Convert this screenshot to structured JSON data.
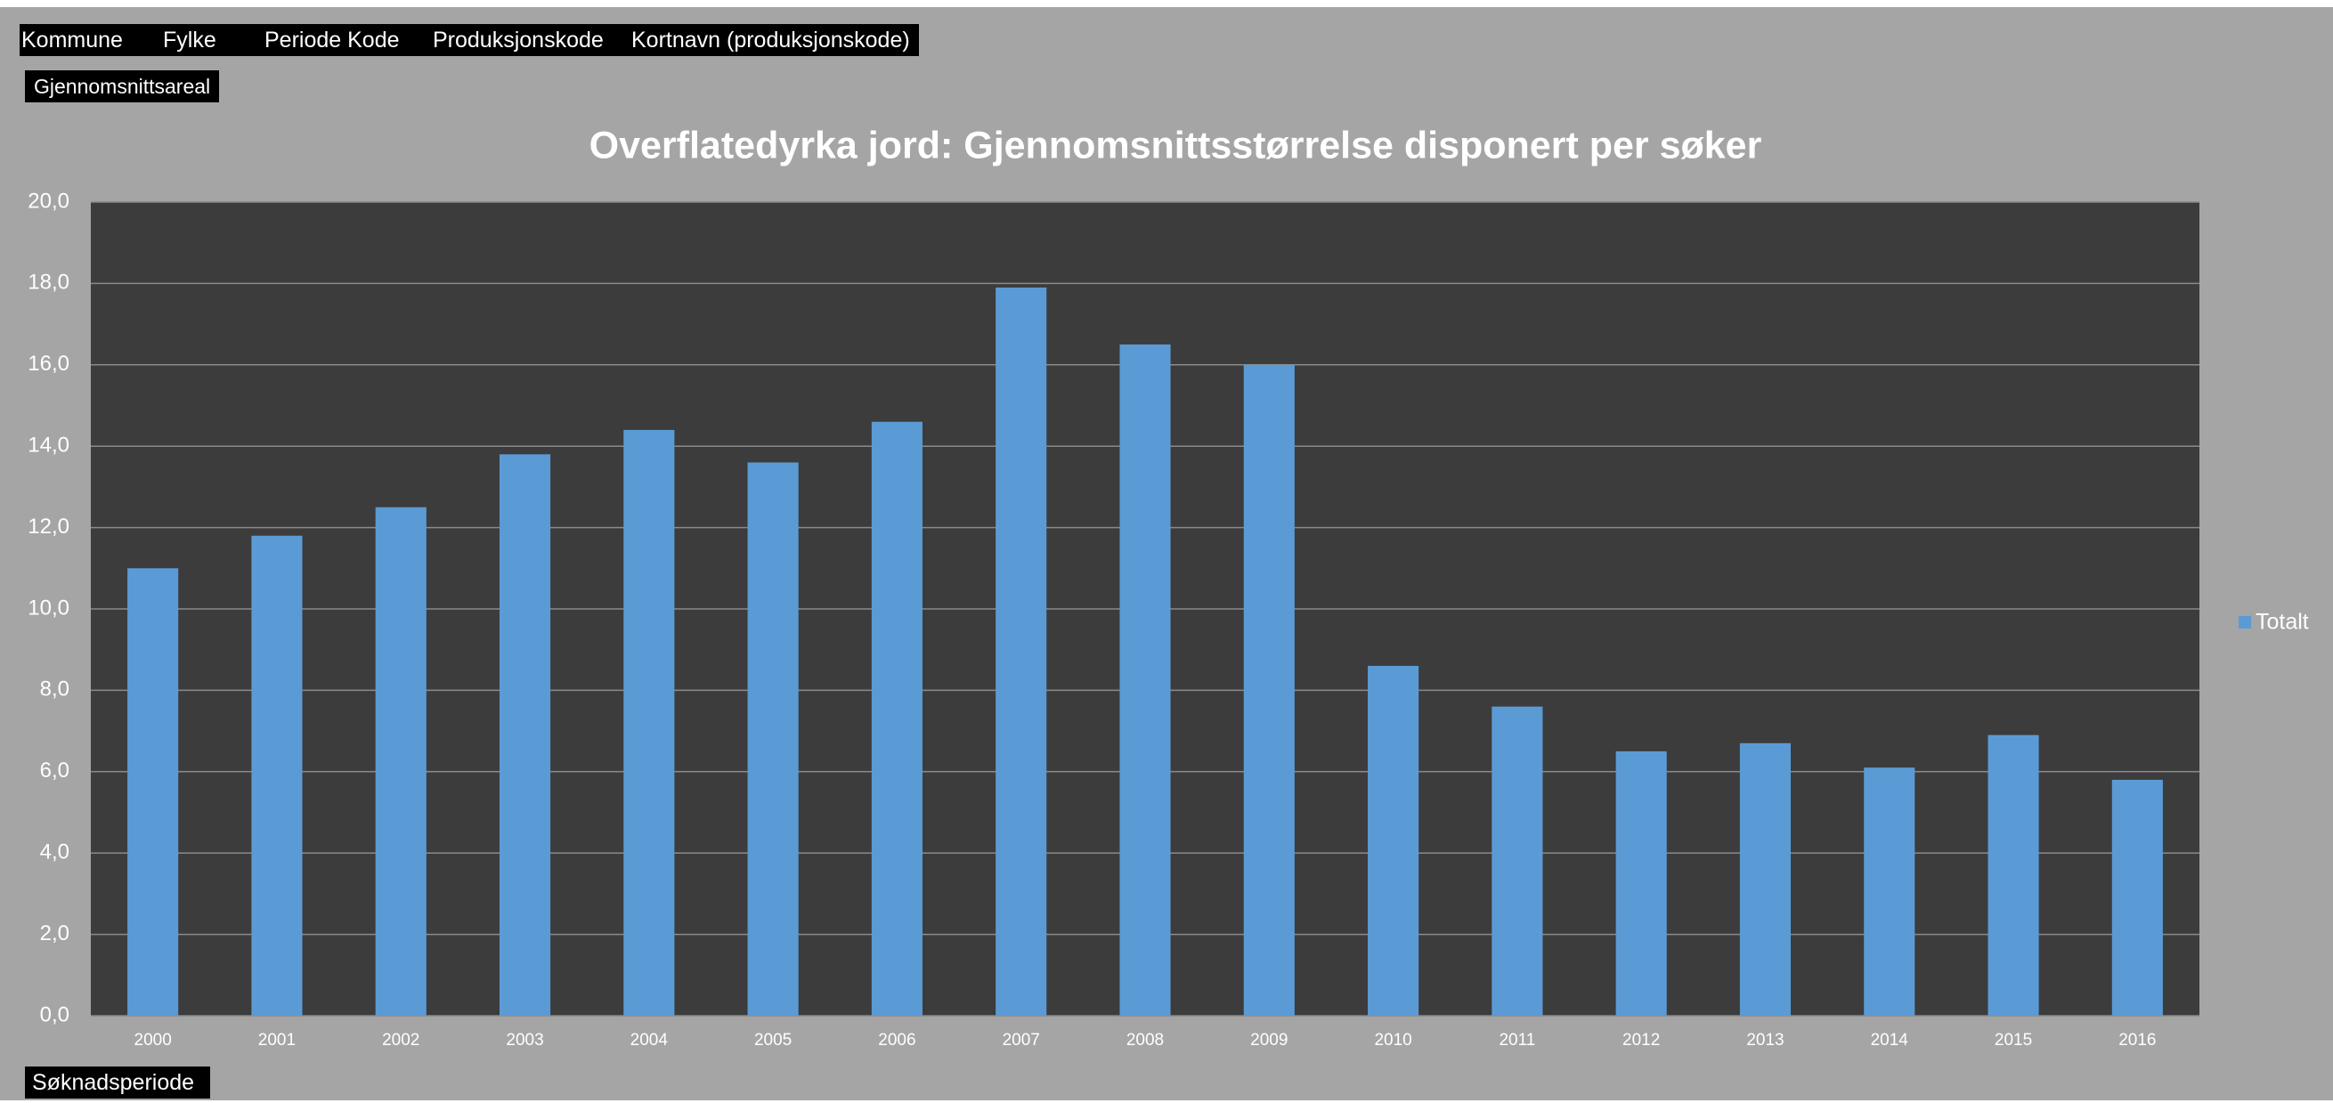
{
  "filter_fields": [
    "Kommune",
    "Fylke",
    "Periode Kode",
    "Produksjonskode",
    "Kortnavn (produksjonskode)"
  ],
  "chart_data": {
    "type": "bar",
    "value_field": "Gjennomsnittsareal",
    "axis_field": "Søknadsperiode",
    "title": "Overflatedyrka jord: Gjennomsnittsstørrelse disponert per søker",
    "categories": [
      "2000",
      "2001",
      "2002",
      "2003",
      "2004",
      "2005",
      "2006",
      "2007",
      "2008",
      "2009",
      "2010",
      "2011",
      "2012",
      "2013",
      "2014",
      "2015",
      "2016"
    ],
    "series": [
      {
        "name": "Totalt",
        "color": "#5b9bd5",
        "values": [
          11.0,
          11.8,
          12.5,
          13.8,
          14.4,
          13.6,
          14.6,
          17.9,
          16.5,
          16.0,
          8.6,
          7.6,
          6.5,
          6.7,
          6.1,
          6.9,
          5.8
        ]
      }
    ],
    "ylim": [
      0,
      20
    ],
    "yticks": [
      {
        "value": 0,
        "label": "0,0"
      },
      {
        "value": 2,
        "label": "2,0"
      },
      {
        "value": 4,
        "label": "4,0"
      },
      {
        "value": 6,
        "label": "6,0"
      },
      {
        "value": 8,
        "label": "8,0"
      },
      {
        "value": 10,
        "label": "10,0"
      },
      {
        "value": 12,
        "label": "12,0"
      },
      {
        "value": 14,
        "label": "14,0"
      },
      {
        "value": 16,
        "label": "16,0"
      },
      {
        "value": 18,
        "label": "18,0"
      },
      {
        "value": 20,
        "label": "20,0"
      }
    ],
    "grid": true,
    "legend": "right"
  }
}
